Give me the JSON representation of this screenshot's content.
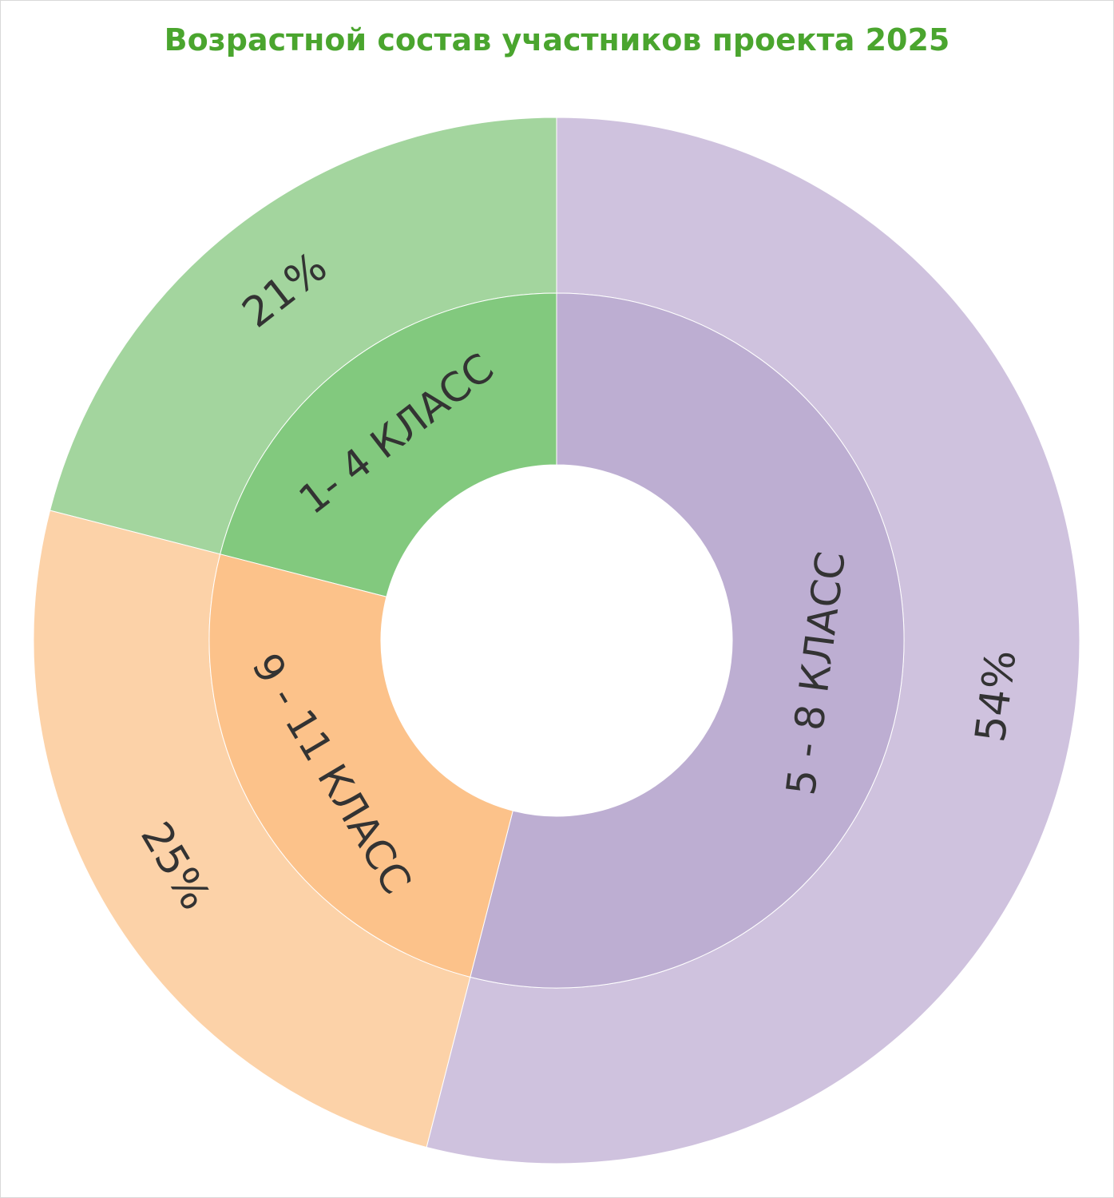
{
  "chart_data": {
    "type": "sunburst",
    "title": "Возрастной состав участников проекта 2025",
    "inner_ring": {
      "categories": [
        "1- 4 КЛАСС",
        "5 - 8 КЛАСС",
        "9 - 11 КЛАСС"
      ],
      "values": [
        21,
        54,
        25
      ],
      "colors": [
        "#82c97e",
        "#bdaed2",
        "#fcc28a"
      ]
    },
    "outer_ring": {
      "labels": [
        "21%",
        "54%",
        "25%"
      ],
      "values": [
        21,
        54,
        25
      ],
      "colors": [
        "#a3d59e",
        "#cfc2de",
        "#fcd2a8"
      ]
    },
    "start": "top",
    "direction": "counter-clockwise"
  }
}
